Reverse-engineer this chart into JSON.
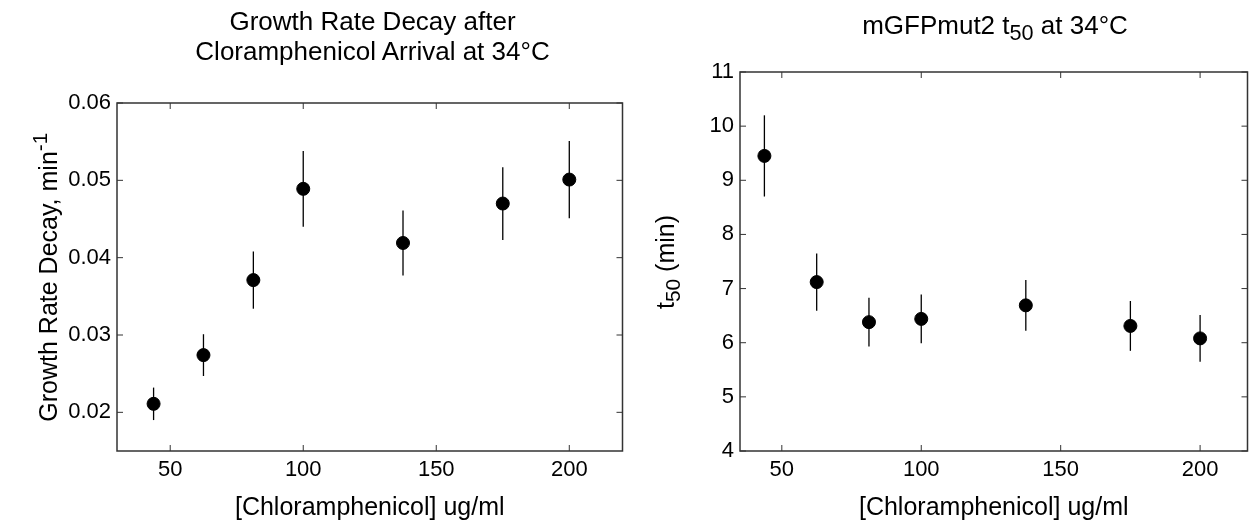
{
  "chart_data": [
    {
      "type": "scatter",
      "title": "Growth Rate Decay after\nCloramphenicol Arrival at 34°C",
      "xlabel": "[Chloramphenicol] ug/ml",
      "ylabel": "Growth Rate Decay, min$^{-1}$",
      "x": [
        43.75,
        62.5,
        81.25,
        100,
        137.5,
        175,
        200
      ],
      "values": [
        0.0211,
        0.0274,
        0.0371,
        0.0489,
        0.0419,
        0.047,
        0.0501
      ],
      "errors": [
        0.0021,
        0.0027,
        0.0037,
        0.0049,
        0.0042,
        0.0047,
        0.005
      ],
      "color": "#000000",
      "marker": "circle",
      "xlim": [
        30,
        220
      ],
      "ylim": [
        0.015,
        0.06
      ],
      "xticks": [
        50,
        100,
        150,
        200
      ],
      "yticks": [
        0.02,
        0.03,
        0.04,
        0.05,
        0.06
      ]
    },
    {
      "type": "scatter",
      "title": "mGFPmut2 t$_{50}$ at 34°C",
      "xlabel": "[Chloramphenicol] ug/ml",
      "ylabel": "t$_{50}$ (min)",
      "x": [
        43.75,
        62.5,
        81.25,
        100,
        137.5,
        175,
        200
      ],
      "values": [
        9.45,
        7.12,
        6.38,
        6.44,
        6.69,
        6.31,
        6.08
      ],
      "errors": [
        0.75,
        0.53,
        0.45,
        0.45,
        0.47,
        0.46,
        0.43
      ],
      "color": "#000000",
      "marker": "circle",
      "xlim": [
        35,
        217
      ],
      "ylim": [
        4,
        11
      ],
      "xticks": [
        50,
        100,
        150,
        200
      ],
      "yticks": [
        4,
        5,
        6,
        7,
        8,
        9,
        10,
        11
      ]
    }
  ]
}
